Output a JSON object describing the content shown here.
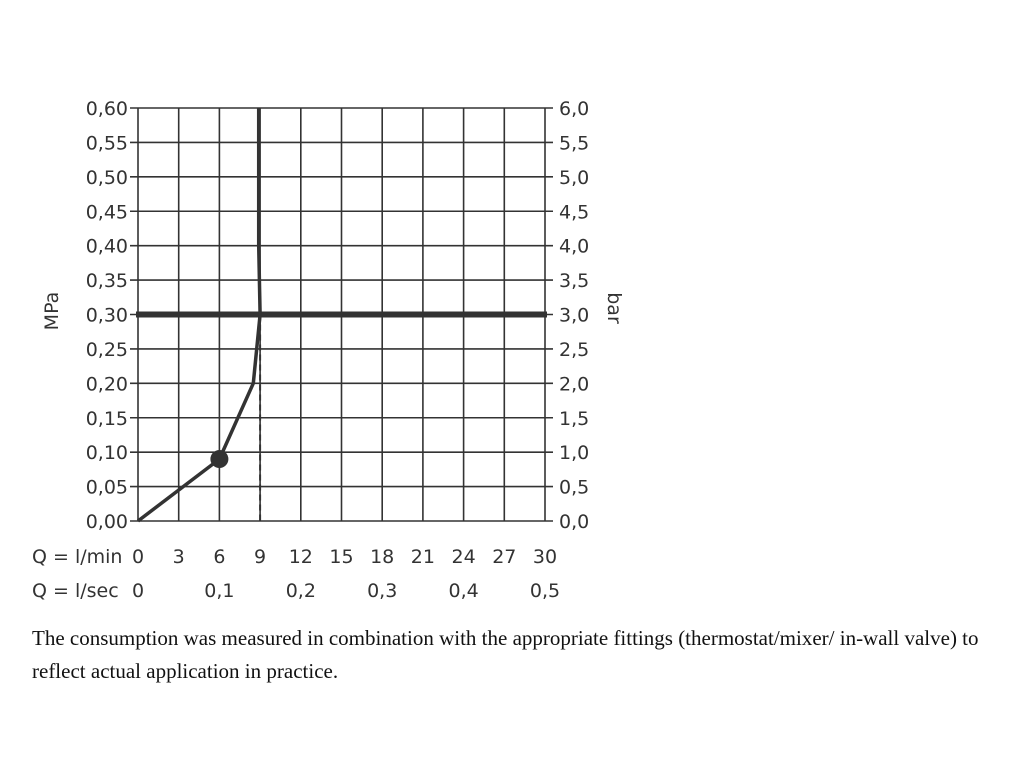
{
  "chart_data": {
    "type": "line",
    "left_axis": {
      "label": "MPa",
      "range": [
        0,
        0.6
      ],
      "ticks": [
        "0,00",
        "0,05",
        "0,10",
        "0,15",
        "0,20",
        "0,25",
        "0,30",
        "0,35",
        "0,40",
        "0,45",
        "0,50",
        "0,55",
        "0,60"
      ]
    },
    "right_axis": {
      "label": "bar",
      "range": [
        0,
        6.0
      ],
      "ticks": [
        "0,0",
        "0,5",
        "1,0",
        "1,5",
        "2,0",
        "2,5",
        "3,0",
        "3,5",
        "4,0",
        "4,5",
        "5,0",
        "5,5",
        "6,0"
      ]
    },
    "x_axis_lmin": {
      "label": "Q = l/min",
      "range": [
        0,
        30
      ],
      "ticks": [
        "0",
        "3",
        "6",
        "9",
        "12",
        "15",
        "18",
        "21",
        "24",
        "27",
        "30"
      ]
    },
    "x_axis_lsec": {
      "label": "Q = l/sec",
      "ticks": [
        {
          "value": 0,
          "label": "0"
        },
        {
          "value": 6,
          "label": "0,1"
        },
        {
          "value": 12,
          "label": "0,2"
        },
        {
          "value": 18,
          "label": "0,3"
        },
        {
          "value": 24,
          "label": "0,4"
        },
        {
          "value": 30,
          "label": "0,5"
        }
      ]
    },
    "flow_curve": [
      {
        "x": 0,
        "y": 0.0
      },
      {
        "x": 6,
        "y": 0.09
      },
      {
        "x": 8.5,
        "y": 0.2
      },
      {
        "x": 9.0,
        "y": 0.3
      },
      {
        "x": 8.9,
        "y": 0.4
      },
      {
        "x": 8.9,
        "y": 0.6
      }
    ],
    "marker_point": {
      "x": 6,
      "y": 0.09
    },
    "reference_pressure": 0.3,
    "dashed_flow": 9,
    "grid": true,
    "colors": {
      "line": "#333333",
      "grid": "#333333"
    }
  },
  "caption": "The consumption was measured in combination with the appropriate fittings (thermostat/mixer/ in-wall valve) to reflect actual application in practice."
}
